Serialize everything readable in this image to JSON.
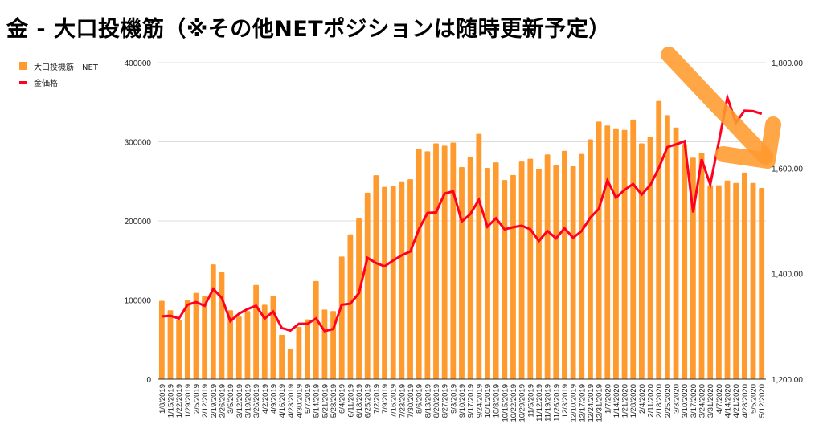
{
  "title": "金 - 大口投機筋（※その他NETポジションは随時更新予定）",
  "chart_data": {
    "type": "bar+line",
    "title": "金 - 大口投機筋（※その他NETポジションは随時更新予定）",
    "legend_position": "top-left",
    "grid": true,
    "categories": [
      "1/8/2019",
      "1/15/2019",
      "1/22/2019",
      "1/29/2019",
      "2/5/2019",
      "2/12/2019",
      "2/19/2019",
      "2/26/2019",
      "3/5/2019",
      "3/12/2019",
      "3/19/2019",
      "3/26/2019",
      "4/2/2019",
      "4/9/2019",
      "4/16/2019",
      "4/23/2019",
      "4/30/2019",
      "5/7/2019",
      "5/14/2019",
      "5/21/2019",
      "5/28/2019",
      "6/4/2019",
      "6/11/2019",
      "6/18/2019",
      "6/25/2019",
      "7/2/2019",
      "7/9/2019",
      "7/16/2019",
      "7/23/2019",
      "7/30/2019",
      "8/6/2019",
      "8/13/2019",
      "8/20/2019",
      "8/27/2019",
      "9/3/2019",
      "9/10/2019",
      "9/17/2019",
      "9/24/2019",
      "10/1/2019",
      "10/8/2019",
      "10/15/2019",
      "10/22/2019",
      "10/29/2019",
      "11/5/2019",
      "11/12/2019",
      "11/19/2019",
      "11/26/2019",
      "12/3/2019",
      "12/10/2019",
      "12/17/2019",
      "12/24/2019",
      "12/31/2019",
      "1/7/2020",
      "1/14/2020",
      "1/21/2020",
      "1/28/2020",
      "2/4/2020",
      "2/11/2020",
      "2/18/2020",
      "2/25/2020",
      "3/3/2020",
      "3/10/2020",
      "3/17/2020",
      "3/24/2020",
      "3/31/2020",
      "4/7/2020",
      "4/14/2020",
      "4/21/2020",
      "4/28/2020",
      "5/5/2020",
      "5/12/2020"
    ],
    "series": [
      {
        "name": "大口投機筋　NET",
        "type": "bar",
        "axis": "left",
        "color": "#ff9a2e",
        "values": [
          99000,
          87000,
          74500,
          100000,
          109000,
          105000,
          145000,
          135000,
          87000,
          79000,
          86000,
          119000,
          94000,
          105000,
          56000,
          38000,
          66000,
          75500,
          124000,
          88000,
          86000,
          155000,
          183000,
          203000,
          235600,
          257700,
          243000,
          244000,
          250000,
          252700,
          290600,
          288000,
          298000,
          295000,
          299000,
          268000,
          281000,
          310000,
          267000,
          274000,
          251700,
          258000,
          275000,
          278500,
          266000,
          284000,
          270000,
          288600,
          269000,
          284600,
          303000,
          325500,
          320500,
          317000,
          315000,
          328000,
          298000,
          306000,
          351700,
          333600,
          318000,
          297000,
          280000,
          286000,
          245000,
          245000,
          251000,
          248000,
          261000,
          248000,
          241600
        ]
      },
      {
        "name": "金価格",
        "type": "line",
        "axis": "right",
        "color": "#ff0022",
        "values": [
          1319,
          1320,
          1315,
          1341,
          1346,
          1339,
          1371,
          1354,
          1310,
          1324,
          1333,
          1339,
          1315,
          1328,
          1297,
          1292,
          1305,
          1305,
          1315,
          1291,
          1295,
          1341,
          1343,
          1363,
          1430,
          1420,
          1414,
          1425,
          1435,
          1442,
          1484,
          1515,
          1516,
          1552,
          1556,
          1499,
          1513,
          1540,
          1489,
          1505,
          1484,
          1488,
          1491,
          1484,
          1462,
          1481,
          1467,
          1486,
          1468,
          1481,
          1506,
          1523,
          1577,
          1544,
          1559,
          1570,
          1550,
          1568,
          1600,
          1640,
          1645,
          1651,
          1516,
          1617,
          1569,
          1650,
          1734,
          1686,
          1709,
          1708,
          1703
        ]
      }
    ],
    "y_left": {
      "range": [
        0,
        400000
      ],
      "ticks": [
        "0",
        "100000",
        "200000",
        "300000",
        "400000"
      ]
    },
    "y_right": {
      "range": [
        1200,
        1800
      ],
      "ticks": [
        "1,200.00",
        "1,400.00",
        "1,600.00",
        "1,800.00"
      ]
    },
    "annotation": {
      "type": "arrow",
      "meaning": "downward trend",
      "color": "#ff9a2e"
    }
  }
}
